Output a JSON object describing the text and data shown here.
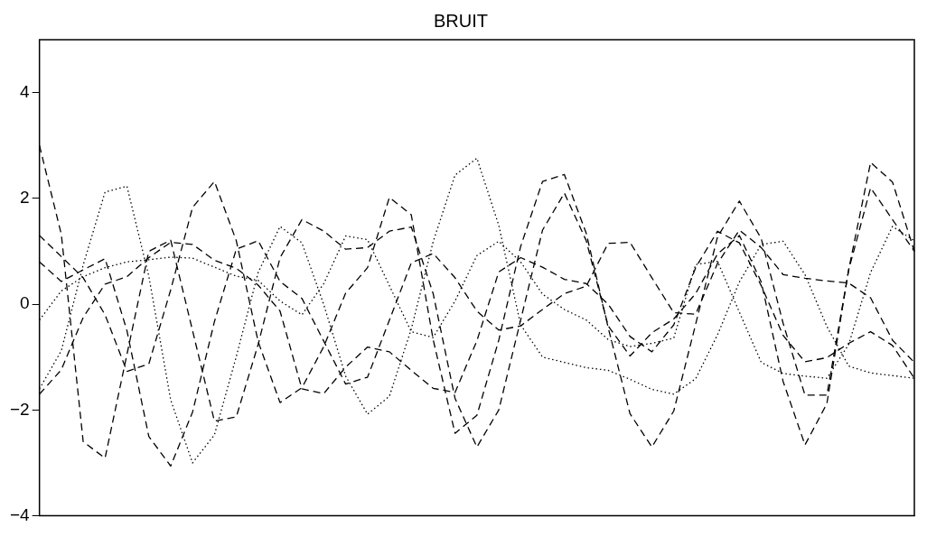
{
  "chart_data": {
    "type": "line",
    "title": "BRUIT",
    "categories": [
      null,
      null,
      null,
      null,
      null,
      null,
      null,
      null,
      null,
      null,
      null,
      null,
      null,
      null,
      null,
      null,
      null,
      null,
      null,
      null,
      null,
      null,
      null,
      null,
      null,
      null,
      null,
      null,
      null,
      null,
      null,
      null,
      null,
      null,
      null,
      null,
      null,
      null,
      null,
      null,
      null
    ],
    "ylim": [
      -4,
      5
    ],
    "yticks": [
      -4,
      -2,
      0,
      2,
      4
    ],
    "tick_labels": "y",
    "legend": false,
    "grid": false,
    "marker": "none",
    "series": [
      {
        "color": "#000000",
        "line_style": "dotted",
        "values": [
          -1.6,
          -0.88,
          0.74,
          2.12,
          2.23,
          0.53,
          -1.81,
          -3.0,
          -2.47,
          -0.99,
          0.6,
          1.47,
          1.16,
          -0.01,
          -1.36,
          -2.08,
          -1.74,
          -0.47,
          1.18,
          2.44,
          2.76,
          1.49,
          -0.39,
          -1.0,
          -1.1,
          -1.2,
          -1.25,
          -1.42,
          -1.61,
          -1.7,
          -1.41,
          -0.58,
          0.42,
          1.13,
          1.19,
          0.56,
          -0.42,
          -1.17,
          -1.3,
          -1.35,
          -1.4
        ]
      },
      {
        "color": "#000000",
        "line_style": "dashed",
        "values": [
          1.3,
          0.9,
          0.5,
          -0.2,
          -1.27,
          -1.13,
          0.27,
          1.83,
          2.32,
          1.2,
          -0.71,
          -1.86,
          -1.58,
          -0.8,
          0.21,
          0.69,
          2.02,
          1.69,
          -0.67,
          -2.44,
          -2.1,
          -0.68,
          1.09,
          2.32,
          2.45,
          1.34,
          -0.44,
          -2.07,
          -2.7,
          -2.02,
          -0.38,
          1.27,
          1.95,
          1.24,
          -0.36,
          -1.72,
          -1.72,
          0.65,
          2.2,
          1.6,
          1.0
        ]
      },
      {
        "color": "#000000",
        "line_style": "dashed",
        "values": [
          3.0,
          1.32,
          -2.6,
          -2.91,
          -0.95,
          1.0,
          1.21,
          -0.5,
          -2.21,
          -2.13,
          -0.76,
          0.88,
          1.6,
          1.38,
          1.04,
          1.07,
          1.38,
          1.46,
          0.2,
          -1.78,
          -2.7,
          -2.0,
          -0.3,
          1.4,
          2.1,
          1.2,
          -0.41,
          -0.98,
          -0.54,
          -0.28,
          0.2,
          0.95,
          1.3,
          0.42,
          -1.46,
          -2.66,
          -1.88,
          0.66,
          2.68,
          2.31,
          1.0
        ]
      },
      {
        "color": "#000000",
        "line_style": "dashed",
        "values": [
          0.8,
          0.43,
          0.65,
          0.86,
          -0.5,
          -2.5,
          -3.06,
          -2.04,
          -0.33,
          1.04,
          1.2,
          0.43,
          0.11,
          -0.7,
          -1.51,
          -1.38,
          -0.3,
          0.78,
          0.96,
          0.5,
          -0.13,
          -0.49,
          -0.41,
          -0.1,
          0.2,
          0.34,
          1.15,
          1.17,
          0.5,
          -0.16,
          -0.19,
          0.77,
          1.4,
          1.07,
          0.56,
          0.49,
          0.44,
          0.4,
          0.12,
          -0.68,
          -1.1
        ]
      },
      {
        "color": "#000000",
        "line_style": "dotted",
        "values": [
          -0.3,
          0.25,
          0.52,
          0.69,
          0.8,
          0.84,
          0.89,
          0.87,
          0.7,
          0.53,
          0.45,
          0.06,
          -0.2,
          0.39,
          1.29,
          1.22,
          0.35,
          -0.52,
          -0.63,
          0.06,
          0.92,
          1.19,
          0.8,
          0.19,
          -0.1,
          -0.3,
          -0.67,
          -0.8,
          -0.74,
          -0.64,
          0.75,
          0.81,
          -0.15,
          -1.1,
          -1.31,
          -1.36,
          -1.4,
          -0.76,
          0.6,
          1.47,
          1.2
        ]
      },
      {
        "color": "#000000",
        "line_style": "dashed",
        "values": [
          -1.7,
          -1.24,
          -0.25,
          0.38,
          0.52,
          0.88,
          1.17,
          1.13,
          0.83,
          0.68,
          0.36,
          -0.13,
          -1.6,
          -1.69,
          -1.19,
          -0.81,
          -0.9,
          -1.25,
          -1.59,
          -1.67,
          -0.69,
          0.61,
          0.88,
          0.7,
          0.47,
          0.39,
          0.0,
          -0.61,
          -0.9,
          -0.39,
          0.69,
          1.38,
          1.16,
          0.35,
          -0.59,
          -1.09,
          -1.01,
          -0.74,
          -0.52,
          -0.78,
          -1.4
        ]
      }
    ]
  }
}
